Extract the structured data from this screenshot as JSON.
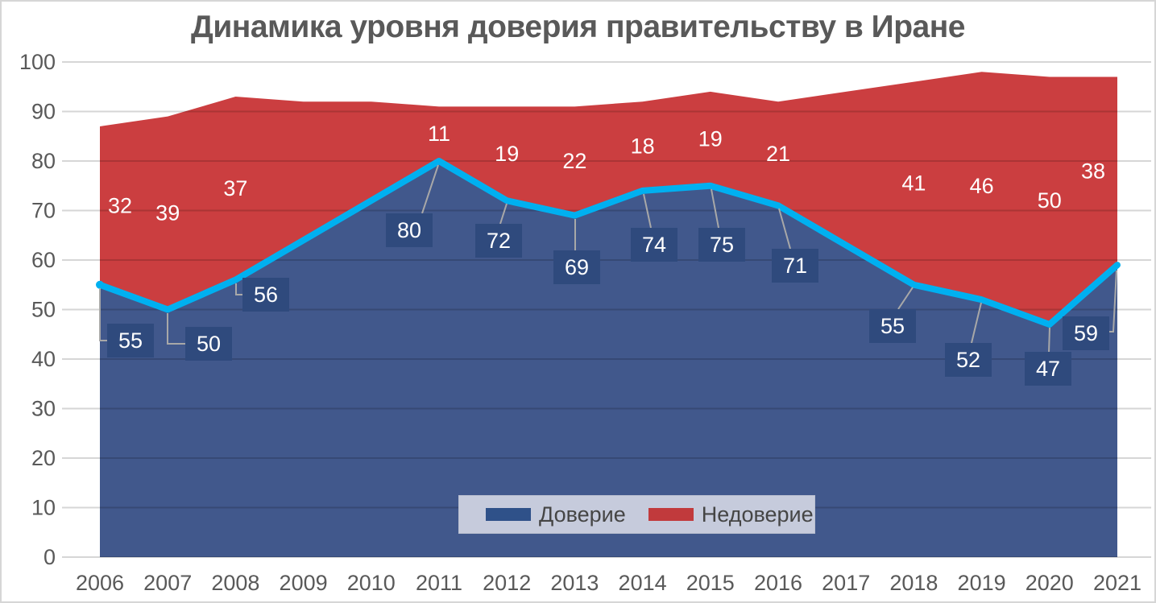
{
  "title": "Динамика уровня доверия правительству в Иране",
  "colors": {
    "trust_area": "#41588C",
    "distrust_area": "#CB3E40",
    "trust_line": "#00B0F0",
    "label_box": "#2F4A7D",
    "label_text": "#FFFFFF",
    "axis_text": "#595959",
    "title_text": "#595959",
    "gridline_overlay": "rgba(0,0,0,0.16)",
    "leader_line": "#A8A8A8",
    "legend_bg": "#C6CBDC",
    "legend_text": "#454545",
    "legend_trust_swatch": "#2F5189",
    "legend_distrust_swatch": "#C13A3C"
  },
  "legend": {
    "items": [
      {
        "label": "Доверие"
      },
      {
        "label": "Недоверие"
      }
    ],
    "position": "bottom-center-overlay"
  },
  "y_axis": {
    "min": 0,
    "max": 100,
    "ticks": [
      0,
      10,
      20,
      30,
      40,
      50,
      60,
      70,
      80,
      90,
      100
    ]
  },
  "chart_data": {
    "type": "area",
    "stacked": true,
    "title": "Динамика уровня доверия правительству в Иране",
    "categories": [
      "2006",
      "2007",
      "2008",
      "2009",
      "2010",
      "2011",
      "2012",
      "2013",
      "2014",
      "2015",
      "2016",
      "2017",
      "2018",
      "2019",
      "2020",
      "2021"
    ],
    "series": [
      {
        "name": "Доверие",
        "values": [
          55,
          50,
          56,
          64,
          72,
          80,
          72,
          69,
          74,
          75,
          71,
          63,
          55,
          52,
          47,
          59
        ],
        "labels": [
          55,
          50,
          56,
          null,
          null,
          80,
          72,
          69,
          74,
          75,
          71,
          null,
          55,
          52,
          47,
          59
        ]
      },
      {
        "name": "Недоверие",
        "values": [
          32,
          39,
          37,
          28,
          20,
          11,
          19,
          22,
          18,
          19,
          21,
          31,
          41,
          46,
          50,
          38
        ],
        "labels": [
          32,
          39,
          37,
          null,
          null,
          11,
          19,
          22,
          18,
          19,
          21,
          null,
          41,
          46,
          50,
          38
        ]
      }
    ],
    "xlabel": "",
    "ylabel": "",
    "ylim": [
      0,
      100
    ],
    "grid": true,
    "legend_position": "bottom"
  }
}
